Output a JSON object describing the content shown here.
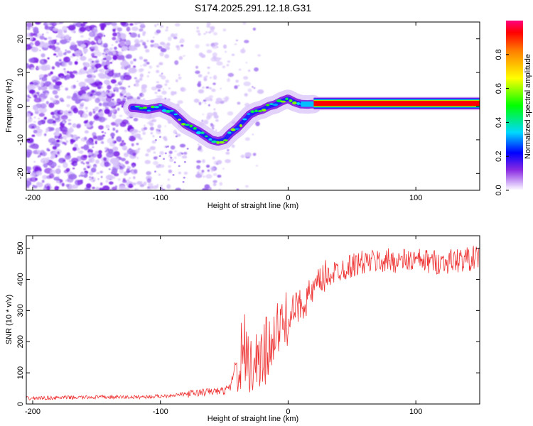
{
  "title": "S174.2025.291.12.18.G31",
  "chart_data": [
    {
      "type": "heatmap",
      "xlabel": "Height of straight line (km)",
      "ylabel": "Frequency (Hz)",
      "xlim": [
        -205,
        150
      ],
      "ylim": [
        -25,
        25
      ],
      "xticks": [
        -200,
        -100,
        0,
        100
      ],
      "yticks": [
        -20,
        -10,
        0,
        10,
        20
      ],
      "colorbar": {
        "label": "Normalized spectral amplitude",
        "range": [
          0,
          1
        ],
        "ticks": [
          0.0,
          0.2,
          0.4,
          0.6,
          0.8
        ]
      },
      "ridge": {
        "x": [
          -120,
          -110,
          -100,
          -90,
          -80,
          -70,
          -60,
          -55,
          -50,
          -45,
          -40,
          -35,
          -30,
          -25,
          -20,
          -15,
          -10,
          -5,
          0,
          5,
          10,
          15,
          20,
          40,
          60,
          80,
          100,
          120,
          150
        ],
        "freq": [
          -0.5,
          -1,
          -0.3,
          -2,
          -5.5,
          -7.5,
          -10,
          -10.5,
          -10,
          -8,
          -6.5,
          -4.5,
          -2.5,
          -1.5,
          -1,
          0,
          0.5,
          1.5,
          2.2,
          1.2,
          0.6,
          0.5,
          0.6,
          0.8,
          0.8,
          0.8,
          0.8,
          0.8,
          0.8
        ]
      }
    },
    {
      "type": "line",
      "xlabel": "Height of straight line (km)",
      "ylabel": "SNR (10 * v/v)",
      "xlim": [
        -205,
        150
      ],
      "ylim": [
        0,
        540
      ],
      "xticks": [
        -200,
        -100,
        0,
        100
      ],
      "yticks": [
        0,
        100,
        200,
        300,
        400,
        500
      ],
      "color": "#ee3333",
      "series": [
        {
          "name": "SNR",
          "x": [
            -205,
            -180,
            -150,
            -120,
            -100,
            -80,
            -60,
            -50,
            -45,
            -42,
            -38,
            -36,
            -34,
            -30,
            -25,
            -20,
            -18,
            -15,
            -10,
            -5,
            0,
            5,
            10,
            15,
            20,
            25,
            30,
            40,
            50,
            60,
            80,
            100,
            120,
            150
          ],
          "values": [
            18,
            20,
            22,
            22,
            25,
            32,
            40,
            42,
            55,
            120,
            150,
            250,
            200,
            140,
            150,
            160,
            190,
            200,
            230,
            250,
            280,
            300,
            320,
            340,
            360,
            390,
            410,
            430,
            445,
            455,
            460,
            460,
            455,
            470
          ]
        }
      ]
    }
  ]
}
